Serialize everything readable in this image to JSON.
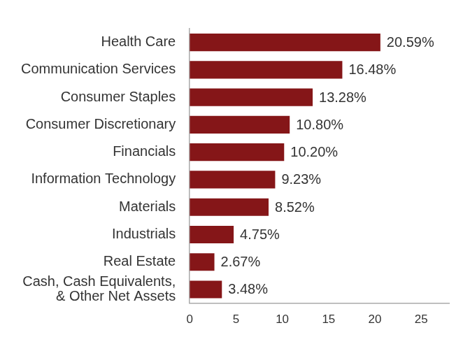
{
  "chart_data": {
    "type": "bar",
    "orientation": "horizontal",
    "categories": [
      "Health Care",
      "Communication Services",
      "Consumer Staples",
      "Consumer Discretionary",
      "Financials",
      "Information Technology",
      "Materials",
      "Industrials",
      "Real Estate",
      "Cash, Cash Equivalents, & Other Net Assets"
    ],
    "values": [
      20.59,
      16.48,
      13.28,
      10.8,
      10.2,
      9.23,
      8.52,
      4.75,
      2.67,
      3.48
    ],
    "value_labels": [
      "20.59%",
      "16.48%",
      "13.28%",
      "10.80%",
      "10.20%",
      "9.23%",
      "8.52%",
      "4.75%",
      "2.67%",
      "3.48%"
    ],
    "data_labels": true,
    "color": "#851618",
    "xlim": [
      0,
      28
    ],
    "xticks": [
      0,
      5,
      10,
      15,
      20,
      25
    ],
    "grid": false
  }
}
